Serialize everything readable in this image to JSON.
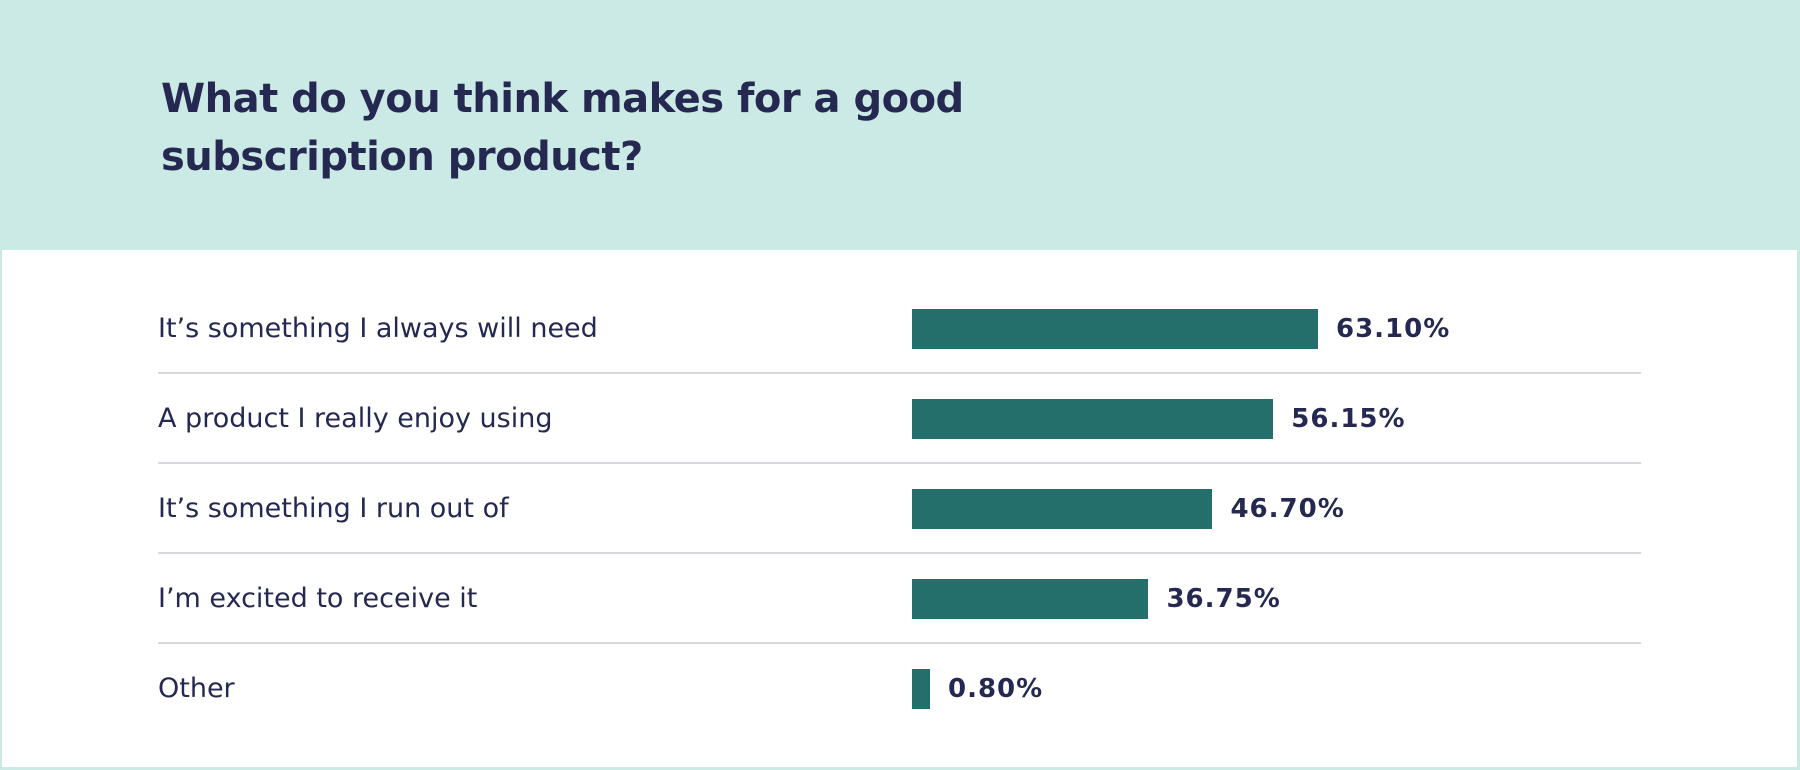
{
  "chart_data": {
    "type": "bar",
    "orientation": "horizontal",
    "title": "What do you think makes for a good subscription product?",
    "categories": [
      "It’s something I always will need",
      "A product I really enjoy using",
      "It’s something I run out of",
      "I’m excited to receive it",
      "Other"
    ],
    "values": [
      63.1,
      56.15,
      46.7,
      36.75,
      0.8
    ],
    "value_labels": [
      "63.10%",
      "56.15%",
      "46.70%",
      "36.75%",
      "0.80%"
    ],
    "xlim": [
      0,
      100
    ],
    "grid": false,
    "colors": {
      "bar": "#246e6c",
      "header_bg": "#cbeae5",
      "text": "#252850"
    }
  }
}
